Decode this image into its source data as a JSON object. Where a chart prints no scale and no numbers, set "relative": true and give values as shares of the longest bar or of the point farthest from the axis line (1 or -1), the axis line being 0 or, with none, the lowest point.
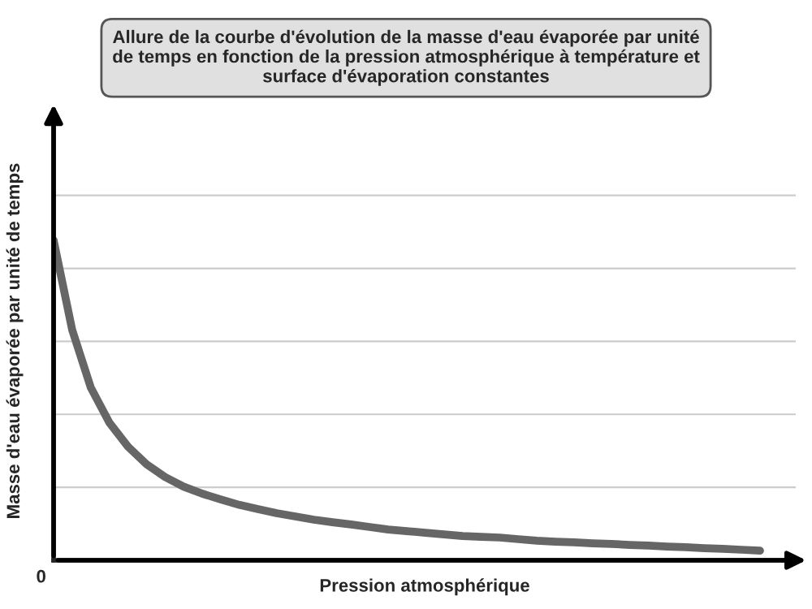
{
  "chart_data": {
    "type": "line",
    "relative": true,
    "title": "Allure de la courbe d'évolution de la masse d'eau évaporée par unité\nde temps en fonction de la pression atmosphérique à température et\nsurface d'évaporation constantes",
    "xlabel": "Pression atmosphérique",
    "ylabel": "Masse d'eau évaporée par unité de temps",
    "annotations": [
      "0"
    ],
    "grid": "y",
    "legend": false,
    "marker": "none",
    "line_style": "solid",
    "categories": [
      null,
      null,
      null,
      null,
      null,
      null,
      null,
      null,
      null,
      null,
      null,
      null,
      null,
      null,
      null,
      null,
      null,
      null,
      null,
      null,
      null,
      null,
      null,
      null,
      null,
      null,
      null,
      null,
      null,
      null,
      null,
      null,
      null,
      null,
      null,
      null,
      null,
      null,
      null
    ],
    "series": [
      {
        "color": "#666666",
        "values": [
          1.0,
          0.72,
          0.54,
          0.43,
          0.355,
          0.3,
          0.26,
          0.23,
          0.208,
          0.19,
          0.173,
          0.16,
          0.147,
          0.137,
          0.127,
          0.119,
          0.112,
          0.104,
          0.096,
          0.091,
          0.086,
          0.081,
          0.076,
          0.073,
          0.071,
          0.066,
          0.061,
          0.058,
          0.056,
          0.053,
          0.051,
          0.048,
          0.046,
          0.043,
          0.041,
          0.038,
          0.036,
          0.033,
          0.03
        ]
      }
    ]
  }
}
